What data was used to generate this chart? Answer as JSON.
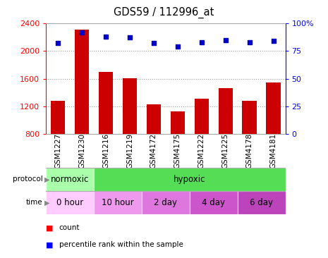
{
  "title": "GDS59 / 112996_at",
  "samples": [
    "GSM1227",
    "GSM1230",
    "GSM1216",
    "GSM1219",
    "GSM4172",
    "GSM4175",
    "GSM1222",
    "GSM1225",
    "GSM4178",
    "GSM4181"
  ],
  "counts": [
    1280,
    2310,
    1700,
    1610,
    1230,
    1130,
    1310,
    1460,
    1280,
    1550
  ],
  "percentiles": [
    82,
    92,
    88,
    87,
    82,
    79,
    83,
    85,
    83,
    84
  ],
  "ylim_left": [
    800,
    2400
  ],
  "ylim_right": [
    0,
    100
  ],
  "yticks_left": [
    800,
    1200,
    1600,
    2000,
    2400
  ],
  "yticks_right": [
    0,
    25,
    50,
    75,
    100
  ],
  "bar_color": "#cc0000",
  "dot_color": "#0000cc",
  "chart_bg": "#ffffff",
  "xlabel_bg": "#cccccc",
  "protocol_normoxic_color": "#aaffaa",
  "protocol_hypoxic_color": "#55dd55",
  "time_colors": [
    "#ffccff",
    "#ee99ee",
    "#dd77dd",
    "#cc55cc",
    "#bb44bb"
  ],
  "protocol_groups": [
    {
      "label": "normoxic",
      "start": 0,
      "end": 2
    },
    {
      "label": "hypoxic",
      "start": 2,
      "end": 10
    }
  ],
  "time_groups": [
    {
      "label": "0 hour",
      "start": 0,
      "end": 2
    },
    {
      "label": "10 hour",
      "start": 2,
      "end": 4
    },
    {
      "label": "2 day",
      "start": 4,
      "end": 6
    },
    {
      "label": "4 day",
      "start": 6,
      "end": 8
    },
    {
      "label": "6 day",
      "start": 8,
      "end": 10
    }
  ]
}
